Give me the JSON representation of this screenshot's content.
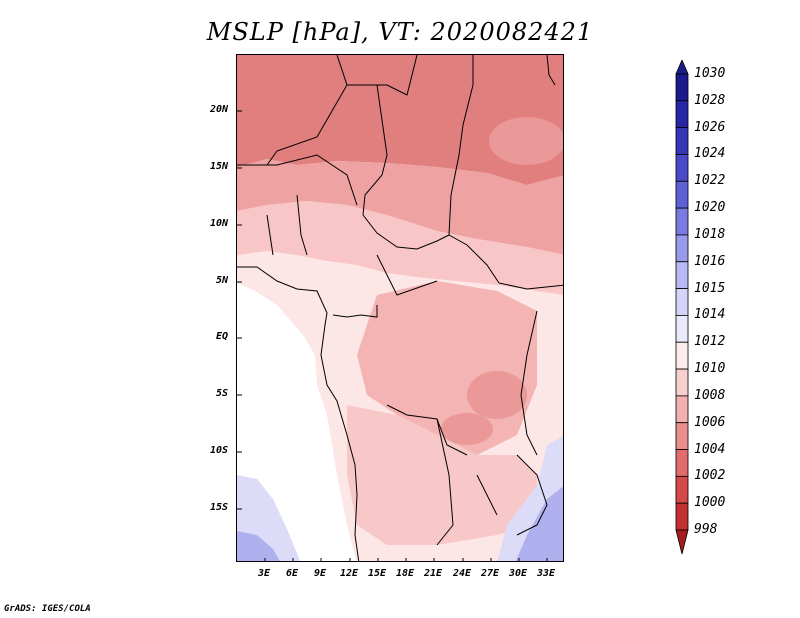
{
  "title": "MSLP [hPa], VT: 2020082421",
  "credit": "GrADS: IGES/COLA",
  "lat_labels": [
    "20N",
    "15N",
    "10N",
    "5N",
    "EQ",
    "5S",
    "10S",
    "15S"
  ],
  "lon_labels": [
    "3E",
    "6E",
    "9E",
    "12E",
    "15E",
    "18E",
    "21E",
    "24E",
    "27E",
    "30E",
    "33E"
  ],
  "colorbar": {
    "levels": [
      "1030",
      "1028",
      "1026",
      "1024",
      "1022",
      "1020",
      "1018",
      "1016",
      "1015",
      "1014",
      "1012",
      "1010",
      "1008",
      "1006",
      "1004",
      "1002",
      "1000",
      "998"
    ],
    "colors": [
      "#1b1b8c",
      "#2626a6",
      "#3636b8",
      "#4a4ac8",
      "#6060d6",
      "#7a7ae0",
      "#9a9aea",
      "#b8b8f2",
      "#d4d4f8",
      "#eaeafc",
      "#fdecec",
      "#f8cfcf",
      "#f2b0b0",
      "#e98d8d",
      "#e06c6c",
      "#d44a4a",
      "#c23030",
      "#a81c1c"
    ]
  },
  "map": {
    "colors": {
      "sea": "#ffffff",
      "sahara_n": "#e17e7e",
      "sahel": "#eea2a2",
      "savanna": "#f8c6c6",
      "coast": "#fde6e6",
      "basin": "#f4b4b4",
      "south": "#f8c8c8",
      "low": "#ea9898",
      "blue_light": "#dcdcf8",
      "blue_med": "#b0b0ee",
      "border": "#000000"
    }
  }
}
